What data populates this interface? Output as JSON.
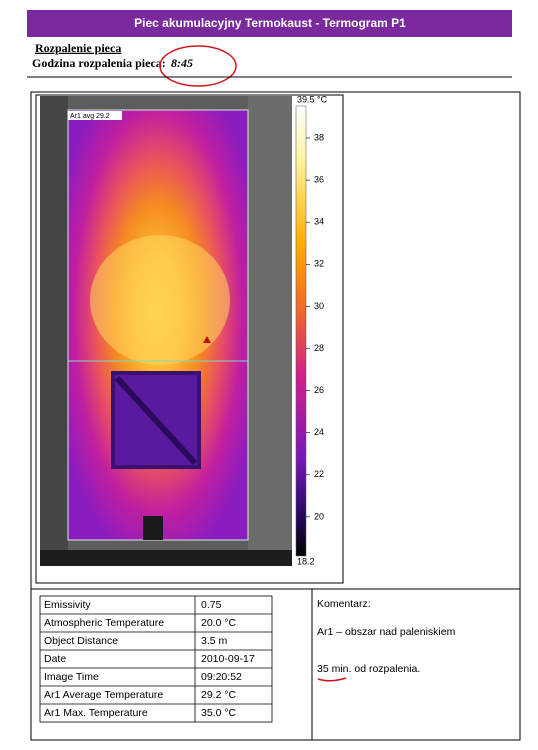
{
  "header": {
    "title": "Piec akumulacyjny Termokaust - Termogram P1"
  },
  "intro": {
    "heading": "Rozpalenie pieca",
    "label": "Godzina rozpalenia pieca:",
    "time": "8:45"
  },
  "thermogram": {
    "area_label": "Ar1 avg 29.2",
    "scale_max": "39.5 °C",
    "scale_min": "18.2",
    "scale_ticks": [
      "38",
      "36",
      "34",
      "32",
      "30",
      "28",
      "26",
      "24",
      "22",
      "20"
    ]
  },
  "table": {
    "rows": [
      [
        "Emissivity",
        "0.75"
      ],
      [
        "Atmospheric Temperature",
        "20.0 °C"
      ],
      [
        "Object Distance",
        "3.5 m"
      ],
      [
        "Date",
        "2010-09-17"
      ],
      [
        "Image Time",
        "09:20:52"
      ],
      [
        "Ar1 Average Temperature",
        "29.2 °C"
      ],
      [
        "Ar1 Max. Temperature",
        "35.0 °C"
      ]
    ]
  },
  "comment": {
    "heading": "Komentarz:",
    "lines": [
      "Ar1 – obszar nad paleniskiem",
      "35 min. od rozpalenia."
    ]
  }
}
